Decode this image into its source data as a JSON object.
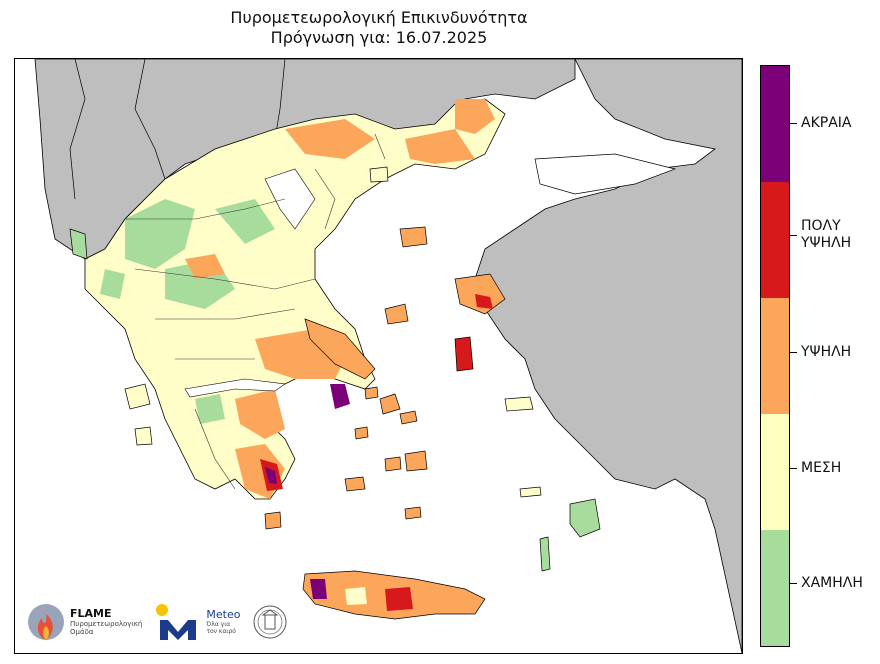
{
  "title": {
    "line1": "Πυρομετεωρολογική Επικινδυνότητα",
    "line2": "Πρόγνωση για: 16.07.2025"
  },
  "legend": {
    "levels": [
      {
        "label": "ΧΑΜΗΛΗ",
        "color": "#a8dc9c"
      },
      {
        "label": "ΜΕΣΗ",
        "color": "#ffffc0"
      },
      {
        "label": "ΥΨΗΛΗ",
        "color": "#fca65c"
      },
      {
        "label": "ΠΟΛΥ ΥΨΗΛΗ",
        "color": "#d7191c"
      },
      {
        "label": "ΑΚΡΑΙΑ",
        "color": "#7b0077"
      }
    ]
  },
  "colors": {
    "neighbor_land": "#bebebe",
    "sea": "#ffffff",
    "border": "#000000"
  },
  "logos": {
    "flame": {
      "name": "FLAME",
      "subtitle_1": "Πυρομετεωρολογική",
      "subtitle_2": "Ομάδα",
      "icon": "flame-logo-icon"
    },
    "meteo": {
      "name": "Meteo",
      "subtitle_1": "Όλα για",
      "subtitle_2": "τον καιρό",
      "icon": "meteo-logo-icon"
    },
    "observatory": {
      "icon": "observatory-seal-icon"
    }
  }
}
